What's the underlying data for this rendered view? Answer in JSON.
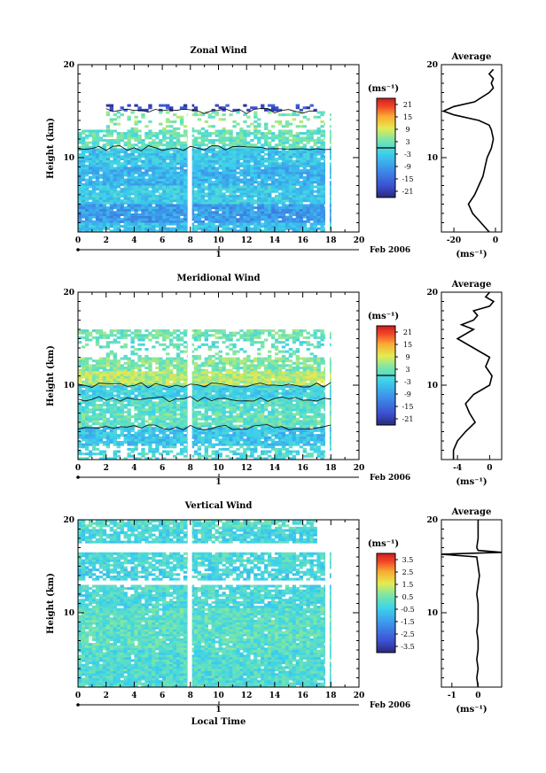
{
  "chart_data": [
    {
      "type": "heatmap",
      "title": "Zonal Wind",
      "ylabel": "Height (km)",
      "x_ticks": [
        "0",
        "2",
        "4",
        "6",
        "8",
        "10",
        "12",
        "14",
        "16",
        "18",
        "20"
      ],
      "y_ticks": [
        "10",
        "20"
      ],
      "xlim": [
        0,
        20
      ],
      "ylim": [
        2,
        20
      ],
      "date_tick": "1",
      "month_label": "Feb 2006",
      "unit_label": "(ms⁻¹)",
      "colorbar": {
        "min": -24,
        "max": 24,
        "ticks": [
          "21",
          "15",
          "9",
          "3",
          "-3",
          "-9",
          "-15",
          "-21"
        ],
        "contour_value": 0
      },
      "gap_x": [
        7.8,
        17.6
      ],
      "layers": [
        {
          "y0": 15.0,
          "y1": 15.6,
          "x0": 2.0,
          "x1": 17.0,
          "v": -19,
          "fill": 0.35
        },
        {
          "y0": 13.0,
          "y1": 15.0,
          "x0": 2.0,
          "x1": 18.0,
          "v": 4,
          "fill": 0.25
        },
        {
          "y0": 11.0,
          "y1": 13.0,
          "x0": 0.0,
          "x1": 18.0,
          "v": 2,
          "fill": 0.75
        },
        {
          "y0": 9.0,
          "y1": 11.0,
          "x0": 0.0,
          "x1": 18.0,
          "v": -4,
          "fill": 0.95
        },
        {
          "y0": 7.0,
          "y1": 9.0,
          "x0": 0.0,
          "x1": 18.0,
          "v": -6,
          "fill": 0.95
        },
        {
          "y0": 5.0,
          "y1": 7.0,
          "x0": 0.0,
          "x1": 18.0,
          "v": -3,
          "fill": 0.95
        },
        {
          "y0": 3.0,
          "y1": 5.0,
          "x0": 0.0,
          "x1": 18.0,
          "v": -9,
          "fill": 0.95
        },
        {
          "y0": 2.0,
          "y1": 3.0,
          "x0": 0.0,
          "x1": 18.0,
          "v": -4,
          "fill": 0.9
        }
      ],
      "average_panel": {
        "title": "Average",
        "x_ticks": [
          "-20",
          "0"
        ],
        "xlim": [
          -26,
          3
        ],
        "y_ticks": [
          "10",
          "20"
        ],
        "xlabel": "(ms⁻¹)",
        "profile": [
          [
            2,
            -3
          ],
          [
            3,
            -7
          ],
          [
            4,
            -11
          ],
          [
            5,
            -13
          ],
          [
            6,
            -10
          ],
          [
            7,
            -8
          ],
          [
            8,
            -6
          ],
          [
            9,
            -5
          ],
          [
            10,
            -4
          ],
          [
            11,
            -2
          ],
          [
            12,
            -1
          ],
          [
            13,
            -2
          ],
          [
            13.5,
            -3
          ],
          [
            14,
            -8
          ],
          [
            14.6,
            -20
          ],
          [
            15,
            -25
          ],
          [
            15.5,
            -20
          ],
          [
            16,
            -10
          ],
          [
            17,
            -3
          ],
          [
            17.5,
            -1
          ],
          [
            18,
            -2
          ],
          [
            18.5,
            -1
          ],
          [
            19,
            -3
          ],
          [
            19.5,
            -1
          ]
        ]
      }
    },
    {
      "type": "heatmap",
      "title": "Meridional Wind",
      "ylabel": "Height (km)",
      "x_ticks": [
        "0",
        "2",
        "4",
        "6",
        "8",
        "10",
        "12",
        "14",
        "16",
        "18",
        "20"
      ],
      "y_ticks": [
        "10",
        "20"
      ],
      "xlim": [
        0,
        20
      ],
      "ylim": [
        2,
        20
      ],
      "date_tick": "1",
      "month_label": "Feb 2006",
      "unit_label": "(ms⁻¹)",
      "colorbar": {
        "min": -24,
        "max": 24,
        "ticks": [
          "21",
          "15",
          "9",
          "3",
          "-3",
          "-9",
          "-15",
          "-21"
        ],
        "contour_value": 0
      },
      "gap_x": [
        7.8,
        17.6
      ],
      "layers": [
        {
          "y0": 15.0,
          "y1": 16.0,
          "x0": 0.0,
          "x1": 18.0,
          "v": 3,
          "fill": 0.7
        },
        {
          "y0": 14.0,
          "y1": 15.0,
          "x0": 0.0,
          "x1": 18.0,
          "v": 1,
          "fill": 0.35
        },
        {
          "y0": 13.0,
          "y1": 14.0,
          "x0": 2.0,
          "x1": 17.0,
          "v": 2,
          "fill": 0.3
        },
        {
          "y0": 11.5,
          "y1": 13.0,
          "x0": 0.0,
          "x1": 18.0,
          "v": 4,
          "fill": 0.8
        },
        {
          "y0": 10.0,
          "y1": 11.5,
          "x0": 0.0,
          "x1": 18.0,
          "v": 7,
          "fill": 0.95
        },
        {
          "y0": 8.5,
          "y1": 10.0,
          "x0": 0.0,
          "x1": 18.0,
          "v": -2,
          "fill": 0.95
        },
        {
          "y0": 7.0,
          "y1": 8.5,
          "x0": 0.0,
          "x1": 18.0,
          "v": 1,
          "fill": 0.9
        },
        {
          "y0": 5.5,
          "y1": 7.0,
          "x0": 0.0,
          "x1": 18.0,
          "v": 2,
          "fill": 0.9
        },
        {
          "y0": 3.5,
          "y1": 5.5,
          "x0": 0.0,
          "x1": 18.0,
          "v": -4,
          "fill": 0.9
        },
        {
          "y0": 2.0,
          "y1": 3.5,
          "x0": 0.0,
          "x1": 18.0,
          "v": -1,
          "fill": 0.5
        }
      ],
      "average_panel": {
        "title": "Average",
        "x_ticks": [
          "-4",
          "0"
        ],
        "xlim": [
          -6,
          1.5
        ],
        "y_ticks": [
          "10",
          "20"
        ],
        "xlabel": "(ms⁻¹)",
        "profile": [
          [
            2,
            -4.5
          ],
          [
            3,
            -4.5
          ],
          [
            4,
            -4
          ],
          [
            5,
            -3
          ],
          [
            6,
            -1.8
          ],
          [
            7,
            -2.5
          ],
          [
            8,
            -3
          ],
          [
            9,
            -2
          ],
          [
            10,
            0
          ],
          [
            11,
            0.3
          ],
          [
            12,
            -0.5
          ],
          [
            13,
            0
          ],
          [
            14,
            -2
          ],
          [
            15,
            -4
          ],
          [
            16,
            -2
          ],
          [
            16.5,
            -3.5
          ],
          [
            17,
            -2
          ],
          [
            17.5,
            -1.5
          ],
          [
            18,
            -2
          ],
          [
            18.5,
            0
          ],
          [
            19,
            0.5
          ],
          [
            19.5,
            -0.5
          ],
          [
            20,
            0
          ]
        ]
      }
    },
    {
      "type": "heatmap",
      "title": "Vertical Wind",
      "ylabel": "Height (km)",
      "xlabel": "Local Time",
      "x_ticks": [
        "0",
        "2",
        "4",
        "6",
        "8",
        "10",
        "12",
        "14",
        "16",
        "18",
        "20"
      ],
      "y_ticks": [
        "10",
        "20"
      ],
      "xlim": [
        0,
        20
      ],
      "ylim": [
        2,
        20
      ],
      "date_tick": "1",
      "month_label": "Feb 2006",
      "unit_label": "(ms⁻¹)",
      "colorbar": {
        "min": -4,
        "max": 4,
        "ticks": [
          "3.5",
          "2.5",
          "1.5",
          "0.5",
          "-0.5",
          "-1.5",
          "-2.5",
          "-3.5"
        ]
      },
      "gap_x": [
        7.8,
        17.6
      ],
      "layers": [
        {
          "y0": 19.0,
          "y1": 20.0,
          "x0": 0.0,
          "x1": 17.0,
          "v": 0.1,
          "fill": 0.8
        },
        {
          "y0": 17.5,
          "y1": 19.0,
          "x0": 0.0,
          "x1": 17.0,
          "v": -0.2,
          "fill": 0.85
        },
        {
          "y0": 15.0,
          "y1": 16.5,
          "x0": 0.0,
          "x1": 18.0,
          "v": -0.1,
          "fill": 0.85
        },
        {
          "y0": 13.5,
          "y1": 15.0,
          "x0": 0.0,
          "x1": 18.0,
          "v": -0.3,
          "fill": 0.7
        },
        {
          "y0": 10.5,
          "y1": 13.0,
          "x0": 0.0,
          "x1": 18.0,
          "v": -0.1,
          "fill": 0.85
        },
        {
          "y0": 6.0,
          "y1": 10.5,
          "x0": 0.0,
          "x1": 18.0,
          "v": 0.2,
          "fill": 0.97
        },
        {
          "y0": 2.0,
          "y1": 6.0,
          "x0": 0.0,
          "x1": 18.0,
          "v": 0.0,
          "fill": 0.97
        }
      ],
      "average_panel": {
        "title": "Average",
        "x_ticks": [
          "-1",
          "0"
        ],
        "xlim": [
          -1.4,
          0.9
        ],
        "y_ticks": [
          "10",
          "20"
        ],
        "xlabel": "(ms⁻¹)",
        "profile": [
          [
            2,
            0
          ],
          [
            3,
            -0.05
          ],
          [
            4,
            0
          ],
          [
            5,
            -0.05
          ],
          [
            6,
            0
          ],
          [
            7,
            0
          ],
          [
            8,
            -0.05
          ],
          [
            9,
            0
          ],
          [
            10,
            0
          ],
          [
            11,
            0
          ],
          [
            12,
            -0.05
          ],
          [
            13,
            0
          ],
          [
            14,
            0.05
          ],
          [
            15,
            0
          ],
          [
            16,
            -0.05
          ],
          [
            16.3,
            -1.4
          ],
          [
            16.5,
            0.9
          ],
          [
            16.7,
            0
          ],
          [
            17,
            -0.05
          ],
          [
            18,
            0
          ],
          [
            19,
            0
          ],
          [
            20,
            0
          ]
        ]
      }
    }
  ]
}
